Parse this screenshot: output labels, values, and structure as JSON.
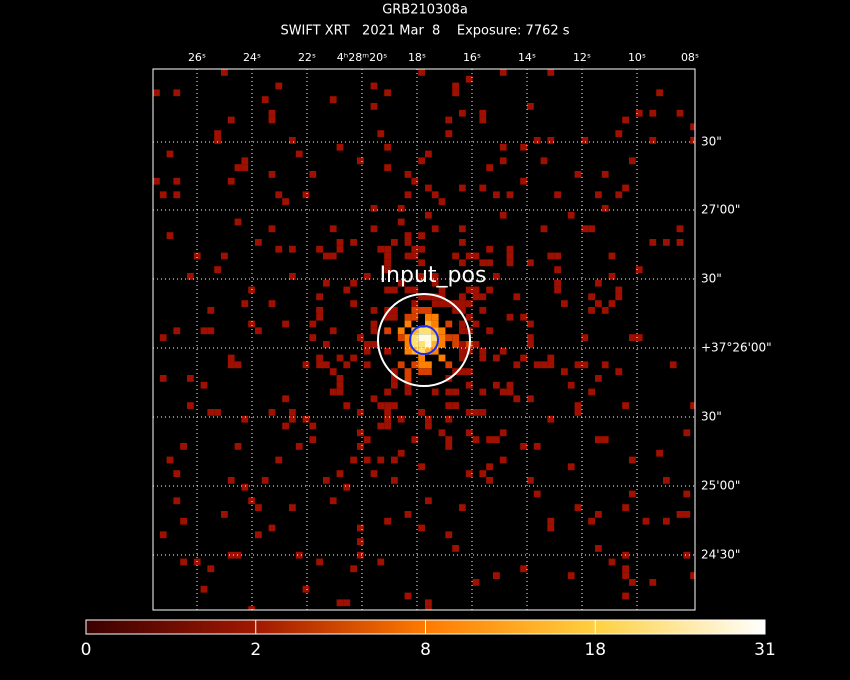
{
  "header": {
    "title": "GRB210308a",
    "subtitle": "SWIFT XRT   2021 Mar  8    Exposure: 7762 s"
  },
  "top_axis": {
    "labels": [
      "26ˢ",
      "24ˢ",
      "22ˢ",
      "4ʰ28ᵐ20ˢ",
      "18ˢ",
      "16ˢ",
      "14ˢ",
      "12ˢ",
      "10ˢ",
      "08ˢ"
    ]
  },
  "right_axis": {
    "labels": [
      "30\"",
      "27'00\"",
      "30\"",
      "+37°26'00\"",
      "30\"",
      "25'00\"",
      "24'30\""
    ]
  },
  "annotation": "Input_pos",
  "colorbar": {
    "labels": [
      "0",
      "2",
      "8",
      "18",
      "31"
    ]
  }
}
